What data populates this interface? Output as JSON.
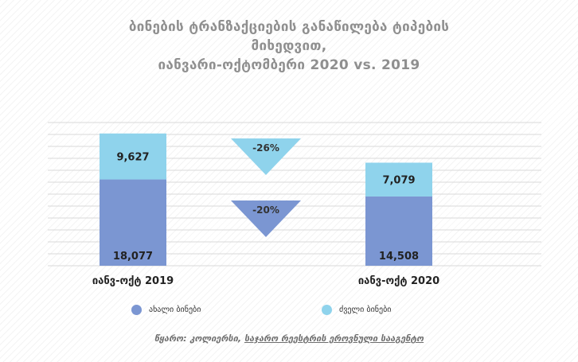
{
  "title_lines": [
    "ბინების ტრანზაქციების განაწილება ტიპების",
    "მიხედვით,",
    "იანვარი-ოქტომბერი 2020 vs. 2019"
  ],
  "chart_data": {
    "type": "bar",
    "stacked": true,
    "categories": [
      "იანვ-ოქტ 2019",
      "იანვ-ოქტ 2020"
    ],
    "series": [
      {
        "name": "ახალი ბინები",
        "values": [
          18077,
          14508
        ],
        "color": "#7b96d2",
        "labels": [
          "18,077",
          "14,508"
        ]
      },
      {
        "name": "ძველი ბინები",
        "values": [
          9627,
          7079
        ],
        "color": "#8fd3ec",
        "labels": [
          "9,627",
          "7,079"
        ]
      }
    ],
    "ylim": [
      0,
      30000
    ],
    "grid": true,
    "annotations": [
      {
        "text": "-26%",
        "series": "ძველი ბინები",
        "color": "#8fd3ec"
      },
      {
        "text": "-20%",
        "series": "ახალი ბინები",
        "color": "#7b96d2"
      }
    ],
    "legend_position": "bottom"
  },
  "source": {
    "label": "წყარო:",
    "text": "კოლიერსი,",
    "link": "საჯარო რეესტრის ეროვნული სააგენტო"
  }
}
